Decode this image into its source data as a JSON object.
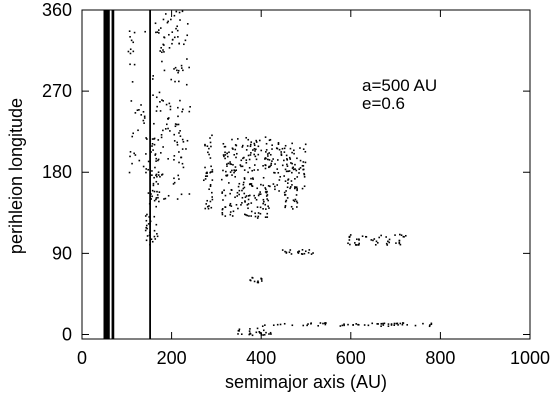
{
  "chart_data": {
    "type": "scatter",
    "title": "",
    "xlabel": "semimajor axis (AU)",
    "ylabel": "perihleion longitude",
    "xlim": [
      0,
      1000
    ],
    "ylim": [
      -5,
      360
    ],
    "xticks": [
      0,
      200,
      400,
      600,
      800,
      1000
    ],
    "yticks": [
      0,
      90,
      180,
      270,
      360
    ],
    "annotations": [
      "a=500 AU",
      "e=0.6"
    ],
    "grid": false,
    "legend": "none",
    "colors": {
      "ink": "#000000",
      "background": "#ffffff"
    },
    "solid_bands": [
      {
        "x_min": 48,
        "x_max": 62
      },
      {
        "x_min": 66,
        "x_max": 72
      },
      {
        "x_min": 150,
        "x_max": 154
      }
    ],
    "point_clusters": [
      {
        "x_min": 155,
        "x_max": 240,
        "y_min": 150,
        "y_max": 360,
        "count": 140
      },
      {
        "x_min": 140,
        "x_max": 170,
        "y_min": 100,
        "y_max": 220,
        "count": 70
      },
      {
        "x_min": 270,
        "x_max": 290,
        "y_min": 140,
        "y_max": 225,
        "count": 40
      },
      {
        "x_min": 310,
        "x_max": 420,
        "y_min": 130,
        "y_max": 220,
        "count": 220
      },
      {
        "x_min": 420,
        "x_max": 500,
        "y_min": 160,
        "y_max": 215,
        "count": 90
      },
      {
        "x_min": 450,
        "x_max": 480,
        "y_min": 140,
        "y_max": 170,
        "count": 25
      },
      {
        "x_min": 440,
        "x_max": 520,
        "y_min": 90,
        "y_max": 95,
        "count": 20
      },
      {
        "x_min": 590,
        "x_max": 730,
        "y_min": 100,
        "y_max": 112,
        "count": 45
      },
      {
        "x_min": 370,
        "x_max": 400,
        "y_min": 58,
        "y_max": 64,
        "count": 12
      },
      {
        "x_min": 340,
        "x_max": 420,
        "y_min": 0,
        "y_max": 8,
        "count": 25
      },
      {
        "x_min": 400,
        "x_max": 780,
        "y_min": 10,
        "y_max": 14,
        "count": 60
      },
      {
        "x_min": 100,
        "x_max": 140,
        "y_min": 180,
        "y_max": 360,
        "count": 35
      }
    ]
  }
}
